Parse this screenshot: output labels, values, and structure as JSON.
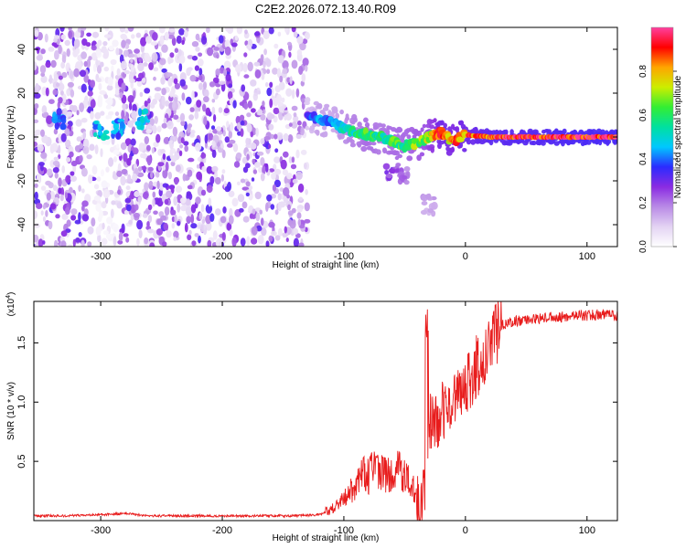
{
  "title": "C2E2.2026.072.13.40.R09",
  "chart_data": [
    {
      "type": "heatmap",
      "xlabel": "Height of straight line (km)",
      "ylabel": "Frequency (Hz)",
      "xlim": [
        -355,
        125
      ],
      "ylim": [
        -50,
        50
      ],
      "xticks": [
        -300,
        -200,
        -100,
        0,
        100
      ],
      "yticks": [
        -40,
        -20,
        0,
        20,
        40
      ],
      "colorbar": {
        "label": "Normalized spectral amplitude",
        "range": [
          0,
          1
        ],
        "ticks": [
          0.0,
          0.2,
          0.4,
          0.6,
          0.8
        ],
        "tick_labels": [
          "0.0",
          "0.2",
          "0.4",
          "0.6",
          "0.8"
        ],
        "colors": [
          "#ffffff",
          "#e3d3f3",
          "#b98ae6",
          "#8a2be2",
          "#2b2bff",
          "#00c8ff",
          "#00e0a0",
          "#33ee33",
          "#ccee00",
          "#ffa500",
          "#ff0000",
          "#ff40a0"
        ]
      },
      "features": {
        "noise_region_x": [
          -355,
          -130
        ],
        "clutter_x_gap": [
          -305,
          -285
        ],
        "trace": [
          {
            "x": -130,
            "y": 10,
            "amp": 0.3
          },
          {
            "x": -120,
            "y": 8,
            "amp": 0.45
          },
          {
            "x": -110,
            "y": 7,
            "amp": 0.4
          },
          {
            "x": -100,
            "y": 4,
            "amp": 0.5
          },
          {
            "x": -90,
            "y": 2,
            "amp": 0.55
          },
          {
            "x": -80,
            "y": 1,
            "amp": 0.6
          },
          {
            "x": -70,
            "y": 0,
            "amp": 0.55
          },
          {
            "x": -60,
            "y": -2,
            "amp": 0.6
          },
          {
            "x": -50,
            "y": -4,
            "amp": 0.6
          },
          {
            "x": -40,
            "y": -3,
            "amp": 0.65
          },
          {
            "x": -30,
            "y": 0,
            "amp": 0.7
          },
          {
            "x": -20,
            "y": 2,
            "amp": 0.85
          },
          {
            "x": -10,
            "y": -2,
            "amp": 0.8
          },
          {
            "x": 0,
            "y": 1,
            "amp": 0.85
          },
          {
            "x": 20,
            "y": 0,
            "amp": 0.9
          },
          {
            "x": 60,
            "y": 0,
            "amp": 0.92
          },
          {
            "x": 100,
            "y": 0,
            "amp": 0.95
          },
          {
            "x": 125,
            "y": 0,
            "amp": 0.95
          }
        ],
        "extra_blobs": [
          {
            "x": -335,
            "y": 8,
            "amp": 0.4
          },
          {
            "x": -300,
            "y": 3,
            "amp": 0.45
          },
          {
            "x": -285,
            "y": 4,
            "amp": 0.4
          },
          {
            "x": -265,
            "y": 8,
            "amp": 0.5
          },
          {
            "x": -60,
            "y": -16,
            "amp": 0.25
          },
          {
            "x": -50,
            "y": -18,
            "amp": 0.2
          },
          {
            "x": -30,
            "y": -31,
            "amp": 0.15
          }
        ]
      }
    },
    {
      "type": "line",
      "xlabel": "Height of straight line (km)",
      "ylabel": "SNR (10 * v/v)",
      "yscale_label": "(x10",
      "yscale_exp": "4",
      "yscale_suffix": ")",
      "xlim": [
        -355,
        125
      ],
      "ylim": [
        0,
        1.85
      ],
      "xticks": [
        -300,
        -200,
        -100,
        0,
        100
      ],
      "yticks": [
        0.5,
        1.0,
        1.5
      ],
      "ytick_labels": [
        "0.5",
        "1.0",
        "1.5"
      ],
      "series": [
        {
          "name": "SNR",
          "color": "#e81c1c",
          "x": [
            -355,
            -330,
            -300,
            -280,
            -260,
            -220,
            -180,
            -140,
            -120,
            -105,
            -95,
            -85,
            -75,
            -65,
            -55,
            -45,
            -38,
            -34,
            -32,
            -30,
            -28,
            -25,
            -20,
            -15,
            -10,
            -5,
            0,
            5,
            10,
            15,
            20,
            25,
            30,
            40,
            50,
            60,
            70,
            80,
            90,
            100,
            110,
            120,
            125
          ],
          "y": [
            0.04,
            0.04,
            0.05,
            0.06,
            0.04,
            0.04,
            0.04,
            0.04,
            0.05,
            0.1,
            0.2,
            0.3,
            0.35,
            0.3,
            0.35,
            0.25,
            0.15,
            0.2,
            0.4,
            0.8,
            0.9,
            0.85,
            0.95,
            1.0,
            1.05,
            1.1,
            1.2,
            1.25,
            1.35,
            1.4,
            1.5,
            1.6,
            1.65,
            1.68,
            1.7,
            1.7,
            1.72,
            1.72,
            1.73,
            1.73,
            1.74,
            1.74,
            1.73
          ]
        }
      ]
    }
  ]
}
